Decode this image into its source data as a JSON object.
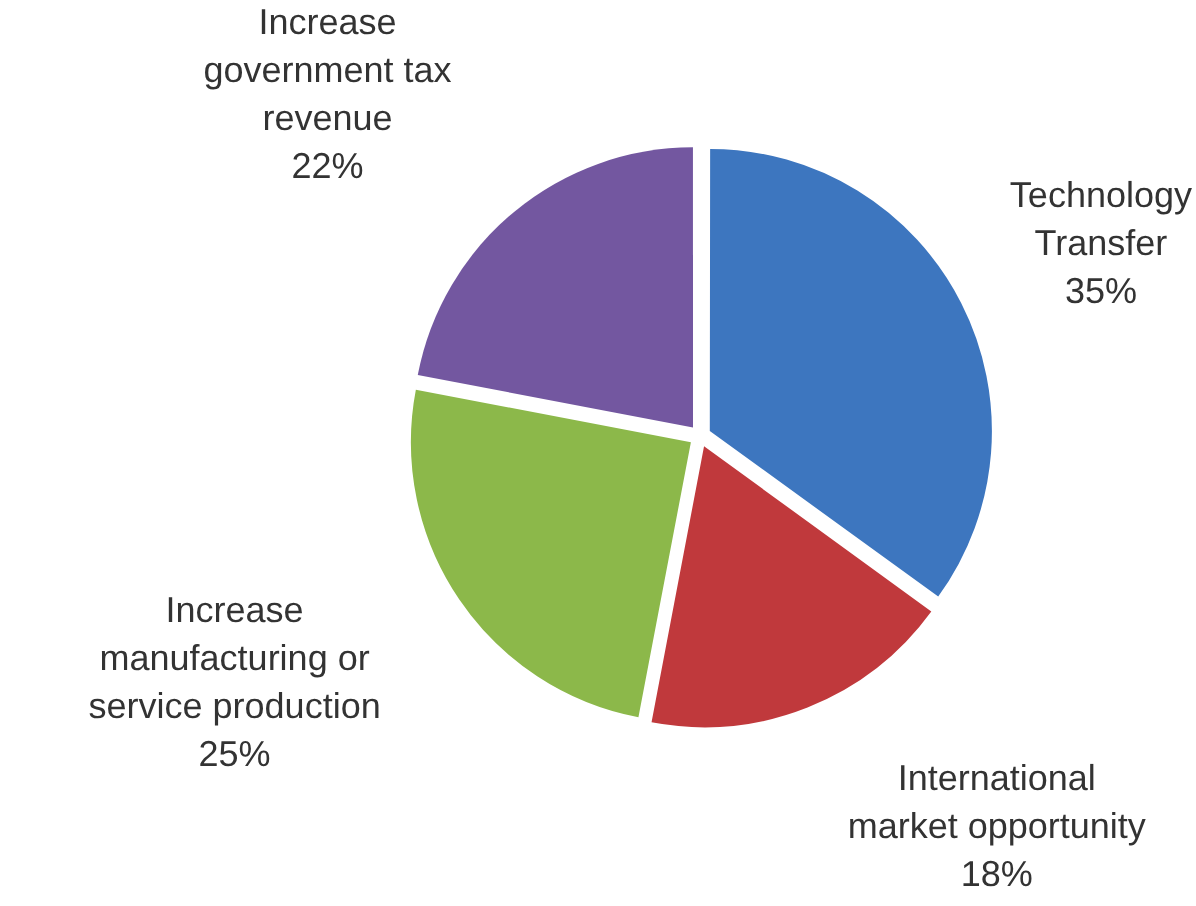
{
  "chart_data": {
    "type": "pie",
    "categories": [
      "Technology Transfer",
      "International market opportunity",
      "Increase manufacturing or service production",
      "Increase government tax revenue"
    ],
    "values": [
      35,
      18,
      25,
      22
    ],
    "value_labels": [
      "35%",
      "18%",
      "25%",
      "22%"
    ],
    "colors": [
      "#3d76bf",
      "#c0393c",
      "#8cb84a",
      "#7357a0"
    ],
    "legend": false
  }
}
